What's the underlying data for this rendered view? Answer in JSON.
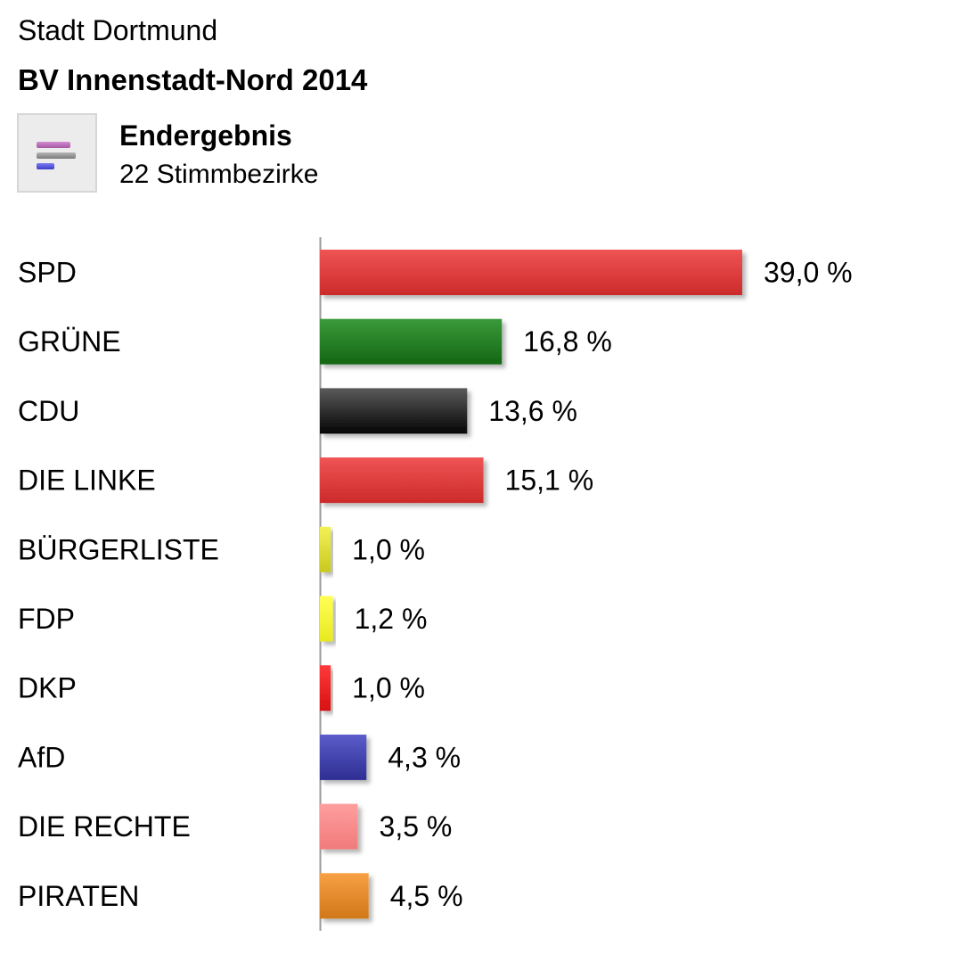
{
  "header": {
    "city": "Stadt Dortmund",
    "district": "BV Innenstadt-Nord 2014",
    "status": "Endergebnis",
    "districts_count": "22 Stimmbezirke",
    "icon": "bar-chart-icon"
  },
  "chart_data": {
    "type": "bar",
    "orientation": "horizontal",
    "title": "BV Innenstadt-Nord 2014",
    "categories": [
      "SPD",
      "GRÜNE",
      "CDU",
      "DIE LINKE",
      "BÜRGERLISTE",
      "FDP",
      "DKP",
      "AfD",
      "DIE RECHTE",
      "PIRATEN"
    ],
    "values": [
      39.0,
      16.8,
      13.6,
      15.1,
      1.0,
      1.2,
      1.0,
      4.3,
      3.5,
      4.5
    ],
    "value_labels": [
      "39,0 %",
      "16,8 %",
      "13,6 %",
      "15,1 %",
      "1,0 %",
      "1,2 %",
      "1,0 %",
      "4,3 %",
      "3,5 %",
      "4,5 %"
    ],
    "colors": [
      [
        "#ef5454",
        "#cc2a2a"
      ],
      [
        "#3a9a3a",
        "#146714"
      ],
      [
        "#5a5a5a",
        "#050505"
      ],
      [
        "#ef5454",
        "#cc2a2a"
      ],
      [
        "#f2f255",
        "#c8c81e"
      ],
      [
        "#ffff55",
        "#e8e820"
      ],
      [
        "#ff3a3a",
        "#d81010"
      ],
      [
        "#5c5ccb",
        "#2e2e92"
      ],
      [
        "#ff9e9e",
        "#f07a7a"
      ],
      [
        "#f7a044",
        "#d07818"
      ]
    ],
    "xlim": [
      0,
      39.0
    ],
    "grid": false,
    "legend": "none"
  }
}
